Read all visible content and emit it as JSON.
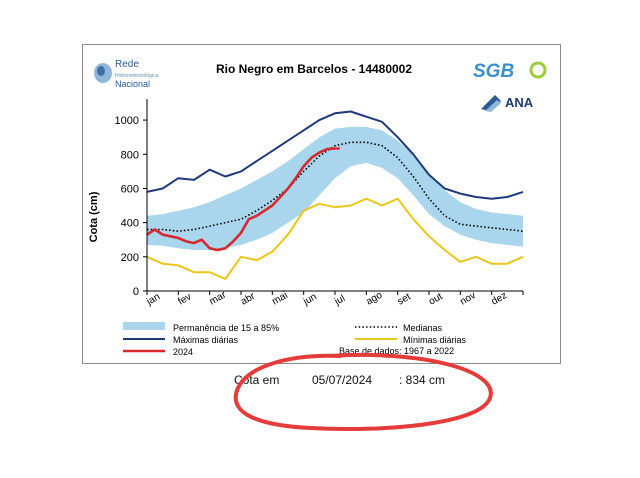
{
  "logos": {
    "rede_line1": "Rede",
    "rede_line2": "Hidrometeorológica",
    "rede_line3": "Nacional",
    "sgb": "SGB",
    "ana": "ANA"
  },
  "colors": {
    "band": "#a9d6ec",
    "median": "#000000",
    "max": "#1f3a7a",
    "min": "#e8c61b",
    "current": "#d7282f",
    "annotation_circle": "#e43b3b"
  },
  "chart_data": {
    "type": "line",
    "title": "Rio Negro em Barcelos - 14480002",
    "ylabel": "Cota (cm)",
    "xlabel": "",
    "ylim": [
      0,
      1100
    ],
    "yticks": [
      0,
      200,
      400,
      600,
      800,
      1000
    ],
    "categories": [
      "jan",
      "fev",
      "mar",
      "abr",
      "mai",
      "jun",
      "jul",
      "ago",
      "set",
      "out",
      "nov",
      "dez"
    ],
    "x": [
      0,
      0.5,
      1,
      1.5,
      2,
      2.5,
      3,
      3.5,
      4,
      4.5,
      5,
      5.5,
      6,
      6.5,
      7,
      7.5,
      8,
      8.5,
      9,
      9.5,
      10,
      10.5,
      11,
      11.5,
      12
    ],
    "band": {
      "name": "Permanência de 15 a 85%",
      "low": [
        270,
        265,
        250,
        240,
        240,
        250,
        270,
        300,
        340,
        400,
        460,
        560,
        660,
        730,
        750,
        720,
        660,
        560,
        450,
        380,
        330,
        300,
        280,
        270,
        260
      ],
      "high": [
        440,
        450,
        470,
        490,
        520,
        560,
        600,
        650,
        700,
        760,
        830,
        900,
        950,
        960,
        960,
        940,
        880,
        800,
        690,
        590,
        520,
        480,
        460,
        450,
        440
      ]
    },
    "series": [
      {
        "name": "Medianas",
        "x": [
          0,
          0.5,
          1,
          1.5,
          2,
          2.5,
          3,
          3.5,
          4,
          4.5,
          5,
          5.5,
          6,
          6.5,
          7,
          7.5,
          8,
          8.5,
          9,
          9.5,
          10,
          10.5,
          11,
          11.5,
          12
        ],
        "values": [
          360,
          360,
          350,
          360,
          380,
          400,
          420,
          470,
          530,
          600,
          700,
          790,
          850,
          870,
          870,
          850,
          780,
          670,
          540,
          440,
          390,
          380,
          370,
          360,
          350
        ]
      },
      {
        "name": "Máximas diárias",
        "x": [
          0,
          0.5,
          1,
          1.5,
          2,
          2.5,
          3,
          3.5,
          4,
          4.5,
          5,
          5.5,
          6,
          6.5,
          7,
          7.5,
          8,
          8.5,
          9,
          9.5,
          10,
          10.5,
          11,
          11.5,
          12
        ],
        "values": [
          580,
          600,
          660,
          650,
          710,
          670,
          700,
          760,
          820,
          880,
          940,
          1000,
          1040,
          1050,
          1020,
          990,
          900,
          800,
          680,
          600,
          570,
          550,
          540,
          550,
          580
        ]
      },
      {
        "name": "Mínimas diárias",
        "x": [
          0,
          0.5,
          1,
          1.5,
          2,
          2.5,
          3,
          3.5,
          4,
          4.5,
          5,
          5.5,
          6,
          6.5,
          7,
          7.5,
          8,
          8.5,
          9,
          9.5,
          10,
          10.5,
          11,
          11.5,
          12
        ],
        "values": [
          200,
          160,
          150,
          110,
          110,
          70,
          200,
          180,
          230,
          330,
          470,
          510,
          490,
          500,
          540,
          500,
          540,
          420,
          320,
          240,
          170,
          200,
          160,
          160,
          200
        ]
      },
      {
        "name": "2024",
        "x": [
          0,
          0.25,
          0.5,
          0.75,
          1,
          1.25,
          1.5,
          1.75,
          2,
          2.25,
          2.5,
          2.75,
          3,
          3.25,
          3.5,
          3.75,
          4,
          4.25,
          4.5,
          4.75,
          5,
          5.25,
          5.5,
          5.75,
          6.0,
          6.15
        ],
        "values": [
          330,
          360,
          330,
          320,
          310,
          290,
          280,
          300,
          250,
          240,
          250,
          290,
          340,
          420,
          440,
          470,
          500,
          550,
          600,
          660,
          730,
          780,
          810,
          830,
          834,
          834
        ]
      }
    ],
    "legend": {
      "placement": "bottom",
      "entries": [
        {
          "label": "Permanência de 15 a 85%",
          "kind": "band"
        },
        {
          "label": "Medianas",
          "kind": "dotted"
        },
        {
          "label": "Máximas diárias",
          "kind": "max"
        },
        {
          "label": "Mínimas diárias",
          "kind": "min"
        },
        {
          "label": "2024",
          "kind": "current"
        }
      ]
    },
    "source_note": "Base de dados: 1967 a 2022",
    "grid": false
  },
  "cota": {
    "label": "Cota em",
    "date": "05/07/2024",
    "value": ": 834 cm"
  }
}
